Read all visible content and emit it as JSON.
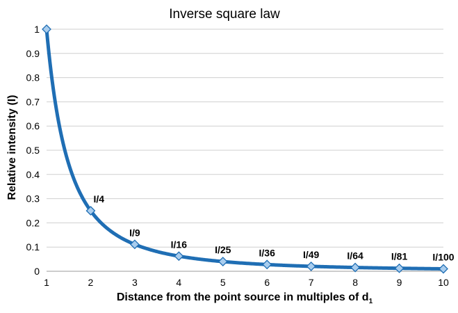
{
  "chart_data": {
    "type": "line",
    "title": "Inverse square law",
    "xlabel": "Distance from the point source in multiples of d",
    "xlabel_subscript": "1",
    "ylabel": "Relative intensity (I)",
    "x": [
      1,
      2,
      3,
      4,
      5,
      6,
      7,
      8,
      9,
      10
    ],
    "series": [
      {
        "values": [
          1,
          0.25,
          0.1111,
          0.0625,
          0.04,
          0.0278,
          0.0204,
          0.0156,
          0.0123,
          0.01
        ],
        "point_labels": [
          "",
          "I/4",
          "I/9",
          "I/16",
          "I/25",
          "I/36",
          "I/49",
          "I/64",
          "I/81",
          "I/100"
        ],
        "color": "#1f6eb4",
        "marker_color": "#a9cdee"
      }
    ],
    "xlim": [
      1,
      10
    ],
    "ylim": [
      0,
      1
    ],
    "xticks": [
      "1",
      "2",
      "3",
      "4",
      "5",
      "6",
      "7",
      "8",
      "9",
      "10"
    ],
    "yticks": [
      "0",
      "0.1",
      "0.2",
      "0.3",
      "0.4",
      "0.5",
      "0.6",
      "0.7",
      "0.8",
      "0.9",
      "1"
    ],
    "grid": true,
    "legend": "none"
  }
}
